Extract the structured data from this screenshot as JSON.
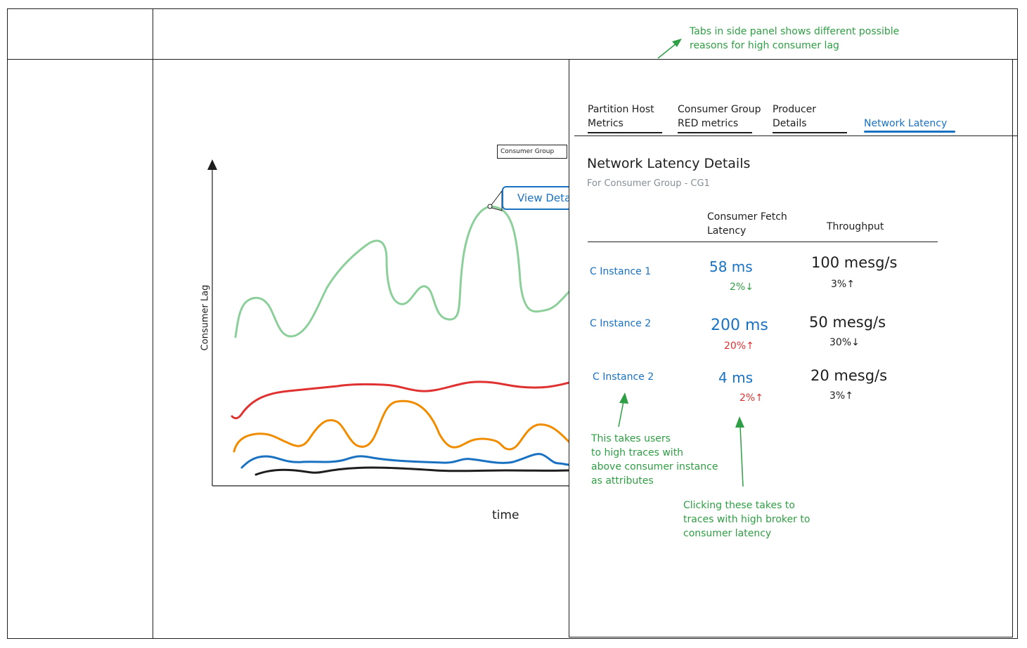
{
  "chart": {
    "y_axis_label": "Consumer Lag",
    "x_axis_label": "time",
    "legend_label": "Consumer Group",
    "view_details_label": "View Deta"
  },
  "panel": {
    "tabs": [
      {
        "line1": "Partition Host",
        "line2": "Metrics"
      },
      {
        "line1": "Consumer Group",
        "line2": "RED metrics"
      },
      {
        "line1": "Producer",
        "line2": "Details"
      },
      {
        "line1": "",
        "line2": "Network Latency"
      }
    ],
    "title": "Network Latency Details",
    "subtitle": "For Consumer Group - CG1",
    "columns": {
      "latency_line1": "Consumer Fetch",
      "latency_line2": "Latency",
      "throughput": "Throughput"
    },
    "rows": [
      {
        "instance": "C Instance 1",
        "latency": "58 ms",
        "latency_change": "2%↓",
        "throughput": "100 mesg/s",
        "throughput_change": "3%↑"
      },
      {
        "instance": "C Instance 2",
        "latency": "200 ms",
        "latency_change": "20%↑",
        "throughput": "50 mesg/s",
        "throughput_change": "30%↓"
      },
      {
        "instance": "C Instance 2",
        "latency": "4 ms",
        "latency_change": "2%↑",
        "throughput": "20 mesg/s",
        "throughput_change": "3%↑"
      }
    ]
  },
  "annotations": {
    "tabs_note_line1": "Tabs in side panel shows different possible",
    "tabs_note_line2": "reasons for high consumer lag",
    "instance_note_line1": "This takes users",
    "instance_note_line2": "to high traces with",
    "instance_note_line3": "above consumer instance",
    "instance_note_line4": "as attributes",
    "latency_note_line1": "Clicking these takes to",
    "latency_note_line2": "traces with high broker to",
    "latency_note_line3": "consumer latency"
  },
  "colors": {
    "green_series": "#8ccf9a",
    "red_series": "#e03131",
    "orange_series": "#f08c00",
    "blue_series": "#1971c2",
    "black_series": "#1e1e1e",
    "accent_blue": "#1971c2",
    "note_green": "#2f9e44"
  }
}
